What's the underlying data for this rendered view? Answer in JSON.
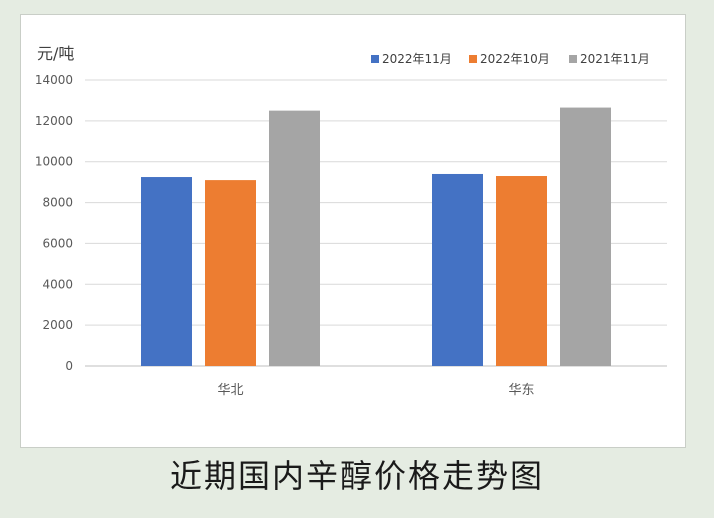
{
  "chart_data": {
    "type": "bar",
    "title": "",
    "ylabel": "元/吨",
    "xlabel": "",
    "categories": [
      "华北",
      "华东"
    ],
    "series": [
      {
        "name": "2022年11月",
        "color": "#4472c4",
        "values": [
          9250,
          9400
        ]
      },
      {
        "name": "2022年10月",
        "color": "#ed7d31",
        "values": [
          9100,
          9300
        ]
      },
      {
        "name": "2021年11月",
        "color": "#a5a5a5",
        "values": [
          12500,
          12650
        ]
      }
    ],
    "ylim": [
      0,
      14000
    ],
    "yticks": [
      "0",
      "2000",
      "4000",
      "6000",
      "8000",
      "10000",
      "12000",
      "14000"
    ],
    "grid": true,
    "legend_position": "top-right"
  },
  "caption": "近期国内辛醇价格走势图"
}
